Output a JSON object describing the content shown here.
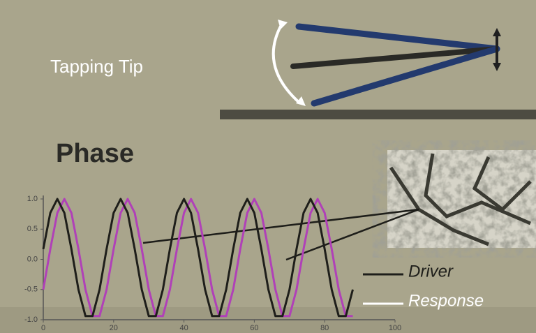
{
  "chart_data": {
    "type": "line",
    "annotations": [
      "Tapping Tip",
      "Phase"
    ],
    "x": [
      0,
      2,
      4,
      6,
      8,
      10,
      12,
      14,
      16,
      18,
      20,
      22,
      24,
      26,
      28,
      30,
      32,
      34,
      36,
      38,
      40,
      42,
      44,
      46,
      48,
      50,
      52,
      54,
      56,
      58,
      60,
      62,
      64,
      66,
      68,
      70,
      72,
      74,
      76,
      78,
      80,
      82,
      84,
      86,
      88
    ],
    "series": [
      {
        "name": "Driver",
        "color": "#1e1e1a",
        "values": [
          0.17,
          0.77,
          1,
          0.77,
          0.17,
          -0.5,
          -0.94,
          -0.94,
          -0.5,
          0.17,
          0.77,
          1,
          0.77,
          0.17,
          -0.5,
          -0.94,
          -0.94,
          -0.5,
          0.17,
          0.77,
          1,
          0.77,
          0.17,
          -0.5,
          -0.94,
          -0.94,
          -0.5,
          0.17,
          0.77,
          1,
          0.77,
          0.17,
          -0.5,
          -0.94,
          -0.94,
          -0.5,
          0.17,
          0.77,
          1,
          0.77,
          0.17,
          -0.5,
          -0.94,
          -0.94,
          -0.5
        ]
      },
      {
        "name": "Response",
        "color": "#b040b8",
        "values": [
          -0.5,
          0.17,
          0.77,
          1,
          0.77,
          0.17,
          -0.5,
          -0.94,
          -0.94,
          -0.5,
          0.17,
          0.77,
          1,
          0.77,
          0.17,
          -0.5,
          -0.94,
          -0.94,
          -0.5,
          0.17,
          0.77,
          1,
          0.77,
          0.17,
          -0.5,
          -0.94,
          -0.94,
          -0.5,
          0.17,
          0.77,
          1,
          0.77,
          0.17,
          -0.5,
          -0.94,
          -0.94,
          -0.5,
          0.17,
          0.77,
          1,
          0.77,
          0.17,
          -0.5,
          -0.94,
          -0.94
        ]
      }
    ],
    "xlim": [
      0,
      100
    ],
    "xticks": [
      0,
      20,
      40,
      60,
      80,
      100
    ],
    "ylim": [
      -1,
      1
    ],
    "yticks": [
      {
        "value": -1,
        "label": "-1.0"
      },
      -0.5,
      {
        "value": 0,
        "label": "0.0"
      },
      0.5,
      {
        "value": 1,
        "label": "1.0"
      }
    ]
  }
}
